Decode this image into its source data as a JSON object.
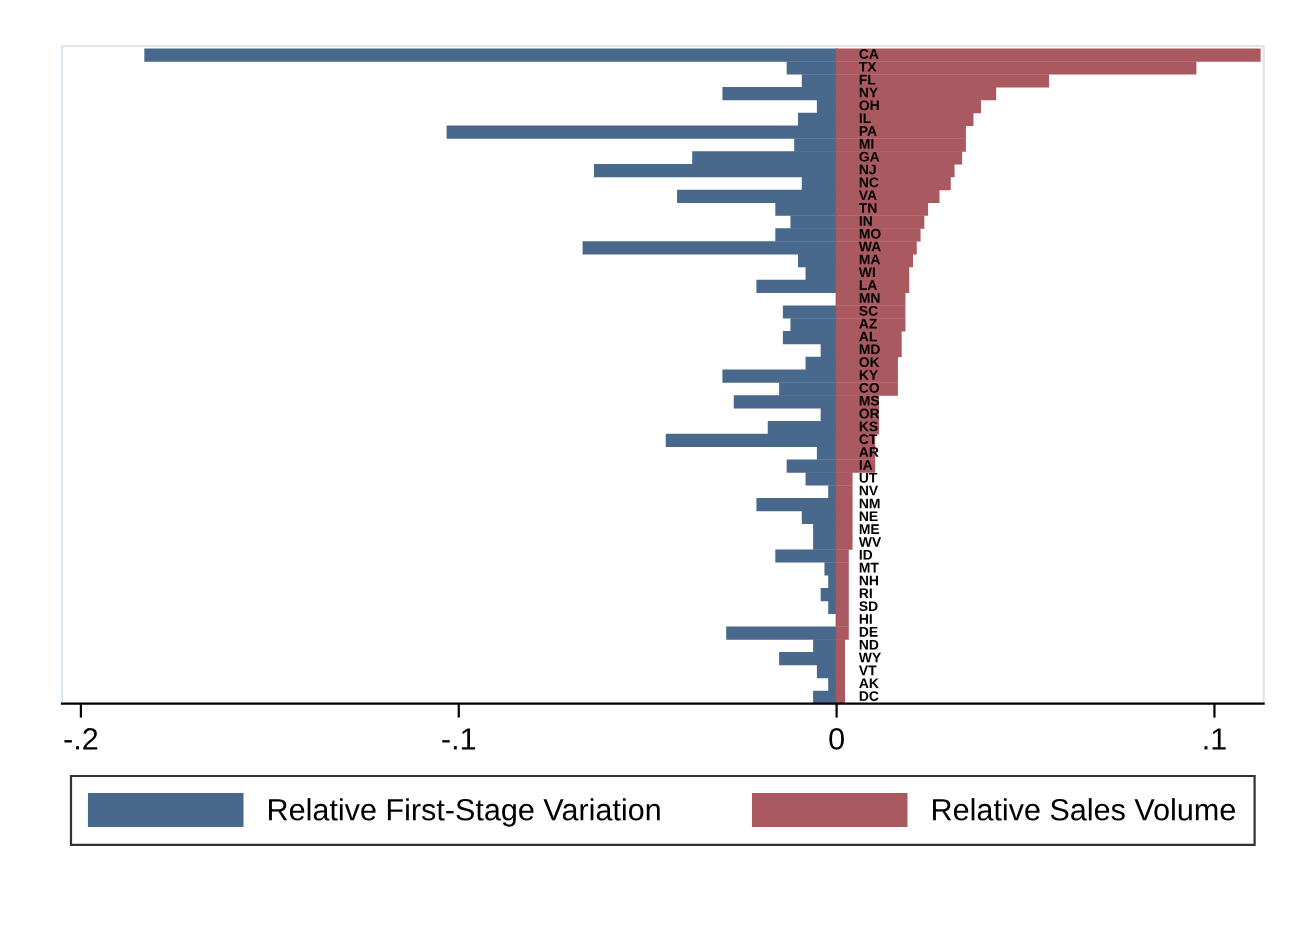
{
  "chart_data": {
    "type": "bar",
    "orientation": "horizontal",
    "categories": [
      "CA",
      "TX",
      "FL",
      "NY",
      "OH",
      "IL",
      "PA",
      "MI",
      "GA",
      "NJ",
      "NC",
      "VA",
      "TN",
      "IN",
      "MO",
      "WA",
      "MA",
      "WI",
      "LA",
      "MN",
      "SC",
      "AZ",
      "AL",
      "MD",
      "OK",
      "KY",
      "CO",
      "MS",
      "OR",
      "KS",
      "CT",
      "AR",
      "IA",
      "UT",
      "NV",
      "NM",
      "NE",
      "ME",
      "WV",
      "ID",
      "MT",
      "NH",
      "RI",
      "SD",
      "HI",
      "DE",
      "ND",
      "WY",
      "VT",
      "AK",
      "DC"
    ],
    "series": [
      {
        "name": "Relative First-Stage Variation",
        "color": "#48698b",
        "values": [
          -0.183,
          -0.013,
          -0.009,
          -0.03,
          -0.005,
          -0.01,
          -0.103,
          -0.011,
          -0.038,
          -0.064,
          -0.009,
          -0.042,
          -0.016,
          -0.012,
          -0.016,
          -0.067,
          -0.01,
          -0.008,
          -0.021,
          0,
          -0.014,
          -0.012,
          -0.014,
          -0.004,
          -0.008,
          -0.03,
          -0.015,
          -0.027,
          -0.004,
          -0.018,
          -0.045,
          -0.005,
          -0.013,
          -0.008,
          -0.002,
          -0.021,
          -0.009,
          -0.006,
          -0.006,
          -0.016,
          -0.003,
          -0.002,
          -0.004,
          -0.002,
          0,
          -0.029,
          -0.006,
          -0.015,
          -0.005,
          -0.002,
          -0.006
        ]
      },
      {
        "name": "Relative Sales Volume",
        "color": "#a9595f",
        "values": [
          0.112,
          0.095,
          0.056,
          0.042,
          0.038,
          0.036,
          0.034,
          0.034,
          0.033,
          0.031,
          0.03,
          0.027,
          0.024,
          0.023,
          0.022,
          0.021,
          0.02,
          0.019,
          0.019,
          0.018,
          0.018,
          0.018,
          0.017,
          0.017,
          0.016,
          0.016,
          0.016,
          0.011,
          0.011,
          0.011,
          0.01,
          0.01,
          0.01,
          0.004,
          0.004,
          0.004,
          0.004,
          0.004,
          0.004,
          0.003,
          0.003,
          0.003,
          0.003,
          0.003,
          0.003,
          0.003,
          0.002,
          0.002,
          0.002,
          0.002,
          0.002
        ]
      }
    ],
    "xlim": [
      -0.205,
      0.113
    ],
    "xticks": [
      {
        "value": -0.2,
        "label": "-.2"
      },
      {
        "value": -0.1,
        "label": "-.1"
      },
      0,
      {
        "value": 0.1,
        "label": ".1"
      }
    ],
    "grid": false,
    "legend": "bottom",
    "stacked": true
  }
}
